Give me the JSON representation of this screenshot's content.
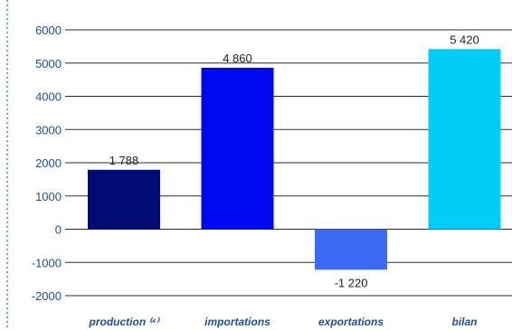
{
  "chart_data": {
    "type": "bar",
    "categories": [
      "production ⁽⁴⁾",
      "importations",
      "exportations",
      "bilan"
    ],
    "values": [
      1788,
      4860,
      -1220,
      5420
    ],
    "value_labels": [
      "1 788",
      "4 860",
      "-1 220",
      "5 420"
    ],
    "y_tick_values": [
      -2000,
      -1000,
      0,
      1000,
      2000,
      3000,
      4000,
      5000,
      6000
    ],
    "y_tick_labels": [
      "-2000",
      "-1000",
      "0",
      "1000",
      "2000",
      "3000",
      "4000",
      "5000",
      "6000"
    ],
    "ylim": [
      -2000,
      6000
    ],
    "grid": true,
    "title": "",
    "xlabel": "",
    "ylabel": "",
    "bar_colors": [
      "#000c73",
      "#0008f0",
      "#3b6af5",
      "#00ccf7"
    ],
    "grid_color": "#2b2b2b",
    "label_color": "#1f4f96",
    "border_color": "#6aa5dc"
  }
}
